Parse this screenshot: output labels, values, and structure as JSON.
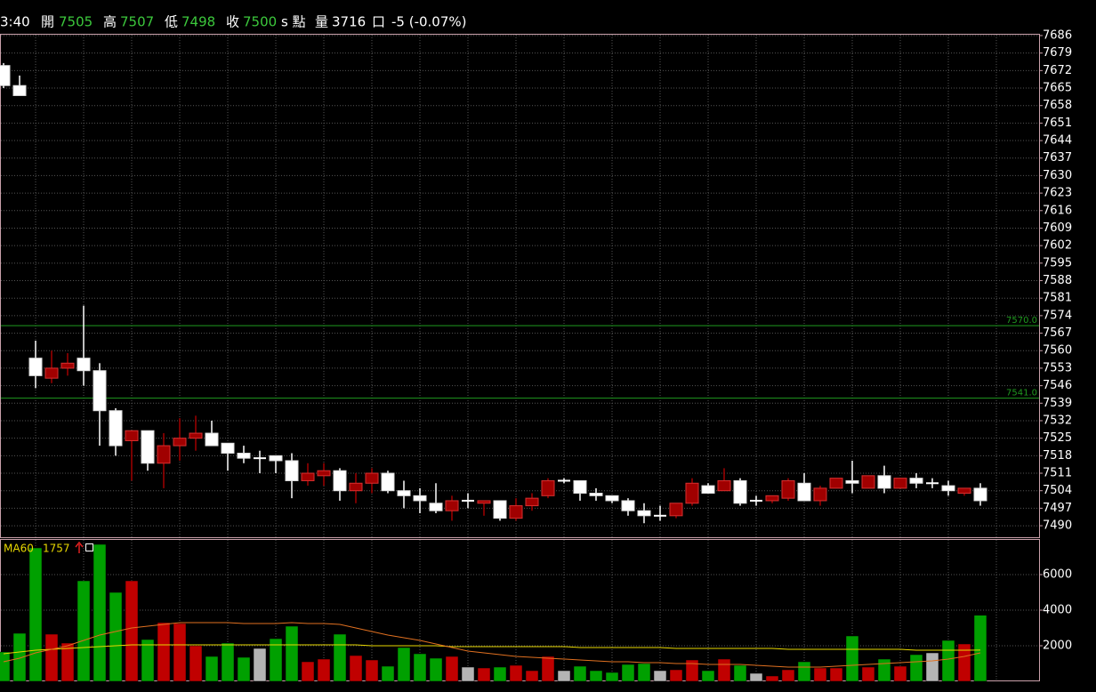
{
  "header": {
    "time": "3:40",
    "open_label": "開",
    "open": 7505,
    "high_label": "高",
    "high": 7507,
    "low_label": "低",
    "low": 7498,
    "close_label": "收",
    "close": 7500,
    "unit": "s 點",
    "volume_label": "量",
    "volume": 3716,
    "volume_unit": "口",
    "change": "-5 (-0.07%)"
  },
  "chart_data": [
    {
      "type": "candlestick",
      "up_color": "#a00000",
      "down_color": "#ffffff",
      "grid": true,
      "open": [
        7674,
        7666,
        7557,
        7549,
        7553,
        7557,
        7552,
        7536,
        7524,
        7528,
        7515,
        7522,
        7525,
        7527,
        7523,
        7519,
        7517,
        7518,
        7516,
        7508,
        7510,
        7512,
        7504,
        7507,
        7511,
        7504,
        7502,
        7499,
        7496,
        7500,
        7499,
        7500,
        7493,
        7498,
        7502,
        7508,
        7508,
        7503,
        7502,
        7500,
        7496,
        7494,
        7494,
        7499,
        7506,
        7504,
        7508,
        7500,
        7500,
        7501,
        7507,
        7500,
        7505,
        7508,
        7505,
        7510,
        7505,
        7509,
        7507,
        7506,
        7503,
        7505
      ],
      "high": [
        7675,
        7670,
        7564,
        7560,
        7559,
        7578,
        7555,
        7537,
        7528,
        7528,
        7527,
        7533,
        7534,
        7532,
        7523,
        7522,
        7520,
        7518,
        7519,
        7515,
        7515,
        7513,
        7511,
        7513,
        7512,
        7508,
        7505,
        7507,
        7502,
        7503,
        7500,
        7500,
        7501,
        7503,
        7509,
        7509,
        7508,
        7505,
        7502,
        7501,
        7499,
        7498,
        7499,
        7509,
        7507,
        7513,
        7509,
        7502,
        7502,
        7509,
        7511,
        7506,
        7509,
        7516,
        7510,
        7514,
        7509,
        7511,
        7509,
        7508,
        7505,
        7507
      ],
      "low": [
        7665,
        7662,
        7545,
        7547,
        7550,
        7546,
        7522,
        7518,
        7508,
        7512,
        7505,
        7516,
        7520,
        7522,
        7512,
        7515,
        7511,
        7511,
        7501,
        7506,
        7506,
        7500,
        7499,
        7503,
        7503,
        7497,
        7495,
        7495,
        7492,
        7497,
        7494,
        7492,
        7492,
        7496,
        7501,
        7507,
        7500,
        7500,
        7499,
        7494,
        7491,
        7492,
        7493,
        7498,
        7503,
        7504,
        7498,
        7498,
        7499,
        7500,
        7500,
        7498,
        7505,
        7503,
        7505,
        7503,
        7505,
        7505,
        7505,
        7502,
        7502,
        7498
      ],
      "close": [
        7666,
        7662,
        7550,
        7553,
        7555,
        7552,
        7536,
        7522,
        7528,
        7515,
        7522,
        7525,
        7527,
        7522,
        7519,
        7517,
        7517,
        7516,
        7508,
        7511,
        7512,
        7504,
        7507,
        7511,
        7504,
        7502,
        7500,
        7496,
        7500,
        7500,
        7500,
        7493,
        7498,
        7501,
        7508,
        7508,
        7503,
        7502,
        7500,
        7496,
        7494,
        7494,
        7499,
        7507,
        7503,
        7508,
        7499,
        7500,
        7502,
        7508,
        7500,
        7505,
        7509,
        7507,
        7510,
        7505,
        7509,
        7507,
        7507,
        7504,
        7505,
        7500
      ],
      "hlines": [
        {
          "value": 7570,
          "label": "7570.0"
        },
        {
          "value": 7541,
          "label": "7541.0"
        }
      ],
      "hline_color": "#1f9a1f",
      "ylim": [
        7485.4,
        7686.7
      ],
      "yticks": [
        7490,
        7497,
        7504,
        7511,
        7518,
        7525,
        7532,
        7539,
        7546,
        7553,
        7560,
        7567,
        7574,
        7581,
        7588,
        7595,
        7602,
        7609,
        7616,
        7623,
        7630,
        7637,
        7644,
        7651,
        7658,
        7665,
        7672,
        7679,
        7686
      ]
    },
    {
      "type": "bar",
      "up_color": "#c00000",
      "down_color": "#00a000",
      "flat_color": "#b4b4b4",
      "grid": true,
      "values": [
        1650,
        2700,
        7500,
        2650,
        2150,
        5650,
        7700,
        5000,
        5650,
        2350,
        3300,
        3250,
        2000,
        1400,
        2150,
        1350,
        1850,
        2400,
        3100,
        1100,
        1250,
        2650,
        1450,
        1200,
        850,
        1900,
        1550,
        1300,
        1400,
        800,
        750,
        800,
        900,
        600,
        1400,
        600,
        850,
        600,
        500,
        950,
        1000,
        600,
        650,
        1200,
        600,
        1250,
        900,
        450,
        300,
        650,
        1100,
        750,
        750,
        2550,
        800,
        1250,
        850,
        1500,
        1600,
        2300,
        2100,
        3716
      ],
      "lines": [
        {
          "name": "MA60",
          "color": "#e8d800",
          "values": [
            1550,
            1650,
            1750,
            1800,
            1850,
            1900,
            1950,
            2000,
            2050,
            2050,
            2050,
            2050,
            2050,
            2050,
            2050,
            2050,
            2050,
            2050,
            2050,
            2050,
            2050,
            2050,
            2050,
            2000,
            2000,
            2000,
            2000,
            2000,
            1950,
            1950,
            1950,
            1950,
            1950,
            1950,
            1950,
            1950,
            1900,
            1900,
            1900,
            1900,
            1900,
            1900,
            1850,
            1850,
            1850,
            1850,
            1850,
            1850,
            1850,
            1800,
            1800,
            1800,
            1800,
            1800,
            1800,
            1800,
            1800,
            1750,
            1750,
            1750,
            1750,
            1757
          ]
        },
        {
          "color": "#e07020",
          "values": [
            1100,
            1300,
            1600,
            1800,
            2000,
            2300,
            2600,
            2800,
            3000,
            3100,
            3200,
            3300,
            3300,
            3300,
            3300,
            3250,
            3250,
            3250,
            3300,
            3250,
            3250,
            3200,
            3000,
            2800,
            2600,
            2450,
            2300,
            2100,
            1900,
            1700,
            1600,
            1500,
            1400,
            1350,
            1300,
            1250,
            1200,
            1150,
            1100,
            1100,
            1050,
            1050,
            1000,
            1000,
            950,
            950,
            950,
            900,
            850,
            800,
            800,
            800,
            850,
            900,
            950,
            1000,
            1050,
            1100,
            1150,
            1250,
            1400,
            1600
          ]
        }
      ],
      "ylim": [
        0,
        8000
      ],
      "yticks": [
        2000,
        4000,
        6000
      ]
    }
  ]
}
